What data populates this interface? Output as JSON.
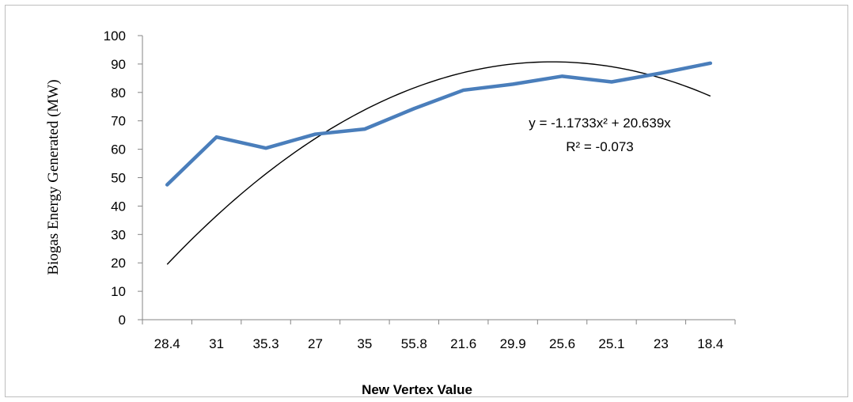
{
  "chart_data": {
    "type": "line",
    "title": "",
    "xlabel": "New Vertex Value",
    "ylabel": "Biogas Energy Generated (MW)",
    "categories": [
      "28.4",
      "31",
      "35.3",
      "27",
      "35",
      "55.8",
      "21.6",
      "29.9",
      "25.6",
      "25.1",
      "23",
      "18.4"
    ],
    "ylim": [
      0,
      100
    ],
    "yticks": [
      "0",
      "10",
      "20",
      "30",
      "40",
      "50",
      "60",
      "70",
      "80",
      "90",
      "100"
    ],
    "grid": false,
    "legend": "none",
    "series": [
      {
        "values": [
          47.5,
          64.3,
          60.4,
          65.3,
          67.1,
          74.3,
          80.8,
          82.9,
          85.7,
          83.7,
          86.8,
          90.3
        ],
        "color": "#4a7ebb"
      }
    ],
    "trendline": {
      "type": "polynomial",
      "order": 2,
      "coefficients": {
        "a": -1.1733,
        "b": 20.639
      },
      "color": "#000000",
      "equation_label": "y = -1.1733x² + 20.639x",
      "r2_label": "R² = -0.073"
    }
  }
}
